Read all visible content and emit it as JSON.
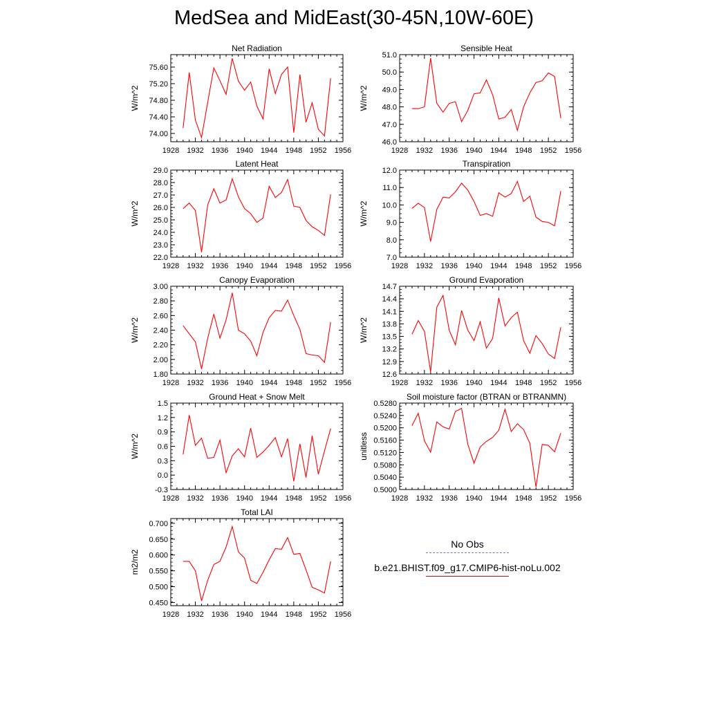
{
  "title": "MedSea and MidEast(30-45N,10W-60E)",
  "colors": {
    "series": "#ff0000",
    "obs": "#7a6fa3",
    "axis": "#000000"
  },
  "legend": {
    "entries": [
      {
        "label": "No Obs",
        "style": "dashed"
      },
      {
        "label": "b.e21.BHIST.f09_g17.CMIP6-hist-noLu.002",
        "style": "solid"
      }
    ]
  },
  "chart_data": [
    {
      "type": "line",
      "title": "Net Radiation",
      "ylabel": "W/m^2",
      "xlim": [
        1928,
        1956
      ],
      "xticks": [
        "1928",
        "1932",
        "1936",
        "1940",
        "1944",
        "1948",
        "1952",
        "1956"
      ],
      "ylim": [
        73.8,
        75.9
      ],
      "yticks": [
        "74.00",
        "74.40",
        "74.80",
        "75.20",
        "75.60"
      ],
      "ytick_values": [
        74.0,
        74.4,
        74.8,
        75.2,
        75.6
      ],
      "x": [
        1930,
        1931,
        1932,
        1933,
        1934,
        1935,
        1936,
        1937,
        1938,
        1939,
        1940,
        1941,
        1942,
        1943,
        1944,
        1945,
        1946,
        1947,
        1948,
        1949,
        1950,
        1951,
        1952,
        1953,
        1954
      ],
      "values": [
        74.13,
        75.47,
        74.32,
        73.9,
        74.75,
        75.58,
        75.27,
        74.94,
        75.81,
        75.26,
        75.04,
        75.24,
        74.66,
        74.35,
        75.56,
        74.96,
        75.42,
        75.6,
        74.02,
        75.42,
        74.27,
        74.74,
        74.1,
        73.94,
        75.33
      ]
    },
    {
      "type": "line",
      "title": "Sensible Heat",
      "ylabel": "W/m^2",
      "xlim": [
        1928,
        1956
      ],
      "xticks": [
        "1928",
        "1932",
        "1936",
        "1940",
        "1944",
        "1948",
        "1952",
        "1956"
      ],
      "ylim": [
        46.0,
        51.0
      ],
      "yticks": [
        "46.0",
        "47.0",
        "48.0",
        "49.0",
        "50.0",
        "51.0"
      ],
      "ytick_values": [
        46,
        47,
        48,
        49,
        50,
        51
      ],
      "x": [
        1930,
        1931,
        1932,
        1933,
        1934,
        1935,
        1936,
        1937,
        1938,
        1939,
        1940,
        1941,
        1942,
        1943,
        1944,
        1945,
        1946,
        1947,
        1948,
        1949,
        1950,
        1951,
        1952,
        1953,
        1954
      ],
      "values": [
        47.9,
        47.9,
        48.0,
        50.8,
        48.2,
        47.7,
        48.2,
        48.3,
        47.15,
        47.8,
        48.75,
        48.8,
        49.55,
        48.7,
        47.3,
        47.4,
        47.85,
        46.65,
        48.0,
        48.8,
        49.4,
        49.5,
        49.95,
        49.75,
        47.35
      ]
    },
    {
      "type": "line",
      "title": "Latent Heat",
      "ylabel": "W/m^2",
      "xlim": [
        1928,
        1956
      ],
      "xticks": [
        "1928",
        "1932",
        "1936",
        "1940",
        "1944",
        "1948",
        "1952",
        "1956"
      ],
      "ylim": [
        22.0,
        29.0
      ],
      "yticks": [
        "22.0",
        "23.0",
        "24.0",
        "25.0",
        "26.0",
        "27.0",
        "28.0",
        "29.0"
      ],
      "ytick_values": [
        22,
        23,
        24,
        25,
        26,
        27,
        28,
        29
      ],
      "x": [
        1930,
        1931,
        1932,
        1933,
        1934,
        1935,
        1936,
        1937,
        1938,
        1939,
        1940,
        1941,
        1942,
        1943,
        1944,
        1945,
        1946,
        1947,
        1948,
        1949,
        1950,
        1951,
        1952,
        1953,
        1954
      ],
      "values": [
        25.9,
        26.35,
        25.75,
        22.4,
        26.2,
        27.5,
        26.35,
        26.6,
        28.3,
        26.85,
        25.9,
        25.5,
        24.8,
        25.15,
        27.7,
        26.8,
        27.2,
        28.25,
        26.1,
        26.0,
        24.95,
        24.45,
        24.15,
        23.75,
        27.05
      ]
    },
    {
      "type": "line",
      "title": "Transpiration",
      "ylabel": "W/m^2",
      "xlim": [
        1928,
        1956
      ],
      "xticks": [
        "1928",
        "1932",
        "1936",
        "1940",
        "1944",
        "1948",
        "1952",
        "1956"
      ],
      "ylim": [
        7.0,
        12.0
      ],
      "yticks": [
        "7.0",
        "8.0",
        "9.0",
        "10.0",
        "11.0",
        "12.0"
      ],
      "ytick_values": [
        7,
        8,
        9,
        10,
        11,
        12
      ],
      "x": [
        1930,
        1931,
        1932,
        1933,
        1934,
        1935,
        1936,
        1937,
        1938,
        1939,
        1940,
        1941,
        1942,
        1943,
        1944,
        1945,
        1946,
        1947,
        1948,
        1949,
        1950,
        1951,
        1952,
        1953,
        1954
      ],
      "values": [
        9.8,
        10.1,
        9.85,
        7.9,
        9.75,
        10.45,
        10.4,
        10.75,
        11.25,
        10.85,
        10.2,
        9.4,
        9.5,
        9.35,
        10.7,
        10.45,
        10.65,
        11.35,
        10.2,
        10.5,
        9.3,
        9.05,
        9.0,
        8.8,
        10.8
      ]
    },
    {
      "type": "line",
      "title": "Canopy Evaporation",
      "ylabel": "W/m^2",
      "xlim": [
        1928,
        1956
      ],
      "xticks": [
        "1928",
        "1932",
        "1936",
        "1940",
        "1944",
        "1948",
        "1952",
        "1956"
      ],
      "ylim": [
        1.8,
        3.0
      ],
      "yticks": [
        "1.80",
        "2.00",
        "2.20",
        "2.40",
        "2.60",
        "2.80",
        "3.00"
      ],
      "ytick_values": [
        1.8,
        2.0,
        2.2,
        2.4,
        2.6,
        2.8,
        3.0
      ],
      "x": [
        1930,
        1931,
        1932,
        1933,
        1934,
        1935,
        1936,
        1937,
        1938,
        1939,
        1940,
        1941,
        1942,
        1943,
        1944,
        1945,
        1946,
        1947,
        1948,
        1949,
        1950,
        1951,
        1952,
        1953,
        1954
      ],
      "values": [
        2.46,
        2.35,
        2.24,
        1.87,
        2.29,
        2.62,
        2.29,
        2.54,
        2.91,
        2.4,
        2.35,
        2.25,
        2.05,
        2.37,
        2.57,
        2.67,
        2.66,
        2.81,
        2.6,
        2.41,
        2.08,
        2.06,
        2.05,
        1.96,
        2.51
      ]
    },
    {
      "type": "line",
      "title": "Ground Evaporation",
      "ylabel": "W/m^2",
      "xlim": [
        1928,
        1956
      ],
      "xticks": [
        "1928",
        "1932",
        "1936",
        "1940",
        "1944",
        "1948",
        "1952",
        "1956"
      ],
      "ylim": [
        12.6,
        14.7
      ],
      "yticks": [
        "12.6",
        "12.9",
        "13.2",
        "13.5",
        "13.8",
        "14.1",
        "14.4",
        "14.7"
      ],
      "ytick_values": [
        12.6,
        12.9,
        13.2,
        13.5,
        13.8,
        14.1,
        14.4,
        14.7
      ],
      "x": [
        1930,
        1931,
        1932,
        1933,
        1934,
        1935,
        1936,
        1937,
        1938,
        1939,
        1940,
        1941,
        1942,
        1943,
        1944,
        1945,
        1946,
        1947,
        1948,
        1949,
        1950,
        1951,
        1952,
        1953,
        1954
      ],
      "values": [
        13.55,
        13.88,
        13.62,
        12.65,
        14.2,
        14.48,
        13.65,
        13.3,
        14.12,
        13.65,
        13.4,
        13.85,
        13.22,
        13.45,
        14.42,
        13.75,
        13.95,
        14.08,
        13.4,
        13.1,
        13.52,
        13.33,
        13.08,
        12.97,
        13.72
      ]
    },
    {
      "type": "line",
      "title": "Ground Heat + Snow Melt",
      "ylabel": "W/m^2",
      "xlim": [
        1928,
        1956
      ],
      "xticks": [
        "1928",
        "1932",
        "1936",
        "1940",
        "1944",
        "1948",
        "1952",
        "1956"
      ],
      "ylim": [
        -0.3,
        1.5
      ],
      "yticks": [
        "-0.3",
        "0.0",
        "0.3",
        "0.6",
        "0.9",
        "1.2",
        "1.5"
      ],
      "ytick_values": [
        -0.3,
        0.0,
        0.3,
        0.6,
        0.9,
        1.2,
        1.5
      ],
      "x": [
        1930,
        1931,
        1932,
        1933,
        1934,
        1935,
        1936,
        1937,
        1938,
        1939,
        1940,
        1941,
        1942,
        1943,
        1944,
        1945,
        1946,
        1947,
        1948,
        1949,
        1950,
        1951,
        1952,
        1953,
        1954
      ],
      "values": [
        0.43,
        1.25,
        0.62,
        0.77,
        0.35,
        0.37,
        0.73,
        0.05,
        0.4,
        0.55,
        0.38,
        0.98,
        0.37,
        0.48,
        0.62,
        0.78,
        0.38,
        0.76,
        -0.13,
        0.65,
        -0.05,
        0.82,
        0.02,
        0.5,
        0.97
      ]
    },
    {
      "type": "line",
      "title": "Soil moisture factor (BTRAN or BTRANMN)",
      "ylabel": "unitless",
      "xlim": [
        1928,
        1956
      ],
      "xticks": [
        "1928",
        "1932",
        "1936",
        "1940",
        "1944",
        "1948",
        "1952",
        "1956"
      ],
      "ylim": [
        0.5,
        0.528
      ],
      "yticks": [
        "0.5000",
        "0.5040",
        "0.5080",
        "0.5120",
        "0.5160",
        "0.5200",
        "0.5240",
        "0.5280"
      ],
      "ytick_values": [
        0.5,
        0.504,
        0.508,
        0.512,
        0.516,
        0.52,
        0.524,
        0.528
      ],
      "x": [
        1930,
        1931,
        1932,
        1933,
        1934,
        1935,
        1936,
        1937,
        1938,
        1939,
        1940,
        1941,
        1942,
        1943,
        1944,
        1945,
        1946,
        1947,
        1948,
        1949,
        1950,
        1951,
        1952,
        1953,
        1954
      ],
      "values": [
        0.5207,
        0.5247,
        0.5158,
        0.5121,
        0.5219,
        0.5203,
        0.5196,
        0.5253,
        0.5263,
        0.5147,
        0.5085,
        0.5138,
        0.5156,
        0.5169,
        0.5192,
        0.526,
        0.5188,
        0.5213,
        0.5194,
        0.515,
        0.5008,
        0.5146,
        0.5143,
        0.5122,
        0.5183
      ]
    },
    {
      "type": "line",
      "title": "Total LAI",
      "ylabel": "m2/m2",
      "xlim": [
        1928,
        1956
      ],
      "xticks": [
        "1928",
        "1932",
        "1936",
        "1940",
        "1944",
        "1948",
        "1952",
        "1956"
      ],
      "ylim": [
        0.44,
        0.715
      ],
      "yticks": [
        "0.450",
        "0.500",
        "0.550",
        "0.600",
        "0.650",
        "0.700"
      ],
      "ytick_values": [
        0.45,
        0.5,
        0.55,
        0.6,
        0.65,
        0.7
      ],
      "x": [
        1930,
        1931,
        1932,
        1933,
        1934,
        1935,
        1936,
        1937,
        1938,
        1939,
        1940,
        1941,
        1942,
        1943,
        1944,
        1945,
        1946,
        1947,
        1948,
        1949,
        1950,
        1951,
        1952,
        1953,
        1954
      ],
      "values": [
        0.58,
        0.58,
        0.55,
        0.455,
        0.52,
        0.57,
        0.58,
        0.625,
        0.69,
        0.61,
        0.59,
        0.52,
        0.51,
        0.545,
        0.585,
        0.62,
        0.618,
        0.655,
        0.602,
        0.605,
        0.553,
        0.498,
        0.49,
        0.48,
        0.58
      ]
    }
  ]
}
